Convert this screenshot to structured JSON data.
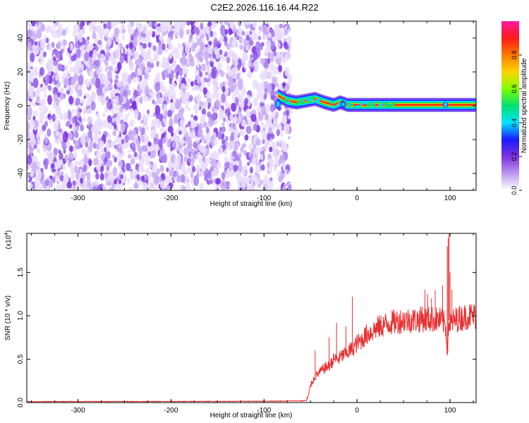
{
  "title": "C2E2.2026.116.16.44.R22",
  "colors": {
    "frame": "#000000",
    "snr_line": "#e83030",
    "spectro_dots": [
      "#e9ddfb",
      "#c9adf4",
      "#a77ded",
      "#8c52e8",
      "#7a2fe0"
    ],
    "cbar_stops": [
      "#ffffff",
      "#bb99ee",
      "#7f2fe0",
      "#1a1aff",
      "#00e5ff",
      "#00e070",
      "#7fff00",
      "#ffd400",
      "#ff7a00",
      "#ff1a1a",
      "#ff1aa0"
    ]
  },
  "chart_data": [
    {
      "type": "heatmap",
      "xlabel": "Height of straight line (km)",
      "ylabel": "Frequency (Hz)",
      "xlim": [
        -355,
        128
      ],
      "ylim": [
        -50,
        50
      ],
      "xticks": [
        -300,
        -200,
        -100,
        0,
        100
      ],
      "xtick_labels": [
        "-300",
        "-200",
        "-100",
        "0",
        "100"
      ],
      "yticks": [
        -40,
        -20,
        0,
        20,
        40
      ],
      "ytick_labels": [
        "-40",
        "-20",
        "0",
        "20",
        "40"
      ],
      "noise_region_x": [
        -355,
        -75
      ],
      "ridge": {
        "x": [
          -85,
          -75,
          -65,
          -55,
          -45,
          -35,
          -25,
          -18,
          -10,
          0,
          10,
          30,
          60,
          90,
          98,
          110,
          128
        ],
        "freq": [
          6,
          3,
          2,
          3,
          4,
          2,
          0.5,
          2,
          0.5,
          0.5,
          0.5,
          0.5,
          0.5,
          0.5,
          0.5,
          0.5,
          0.5
        ]
      },
      "colorbar": {
        "label": "Normalized spectral amplitude",
        "range": [
          0,
          1
        ],
        "ticks": [
          0.0,
          0.2,
          0.4,
          0.6,
          0.8
        ],
        "tick_labels": [
          "0.0",
          "0.2",
          "0.4",
          "0.6",
          "0.8"
        ]
      }
    },
    {
      "type": "line",
      "xlabel": "Height of straight line (km)",
      "ylabel": "SNR (10 * v/v)",
      "scale_label": "(x10",
      "scale_exponent": "4",
      "scale_close": ")",
      "xlim": [
        -355,
        128
      ],
      "ylim": [
        0,
        1.95
      ],
      "xticks": [
        -300,
        -200,
        -100,
        0,
        100
      ],
      "xtick_labels": [
        "-300",
        "-200",
        "-100",
        "0",
        "100"
      ],
      "yticks": [
        0.0,
        0.5,
        1.0,
        1.5
      ],
      "ytick_labels": [
        "0.0",
        "0.5",
        "1.0",
        "1.5"
      ],
      "series": [
        {
          "x": [
            -355,
            -300,
            -200,
            -100,
            -55,
            -52,
            -50,
            -45,
            -40,
            -35,
            -30,
            -25,
            -20,
            -15,
            -10,
            -5,
            0,
            5,
            10,
            20,
            30,
            40,
            50,
            60,
            70,
            80,
            90,
            95,
            97,
            99,
            100,
            102,
            105,
            110,
            120,
            128
          ],
          "y": [
            0.01,
            0.012,
            0.012,
            0.015,
            0.02,
            0.08,
            0.2,
            0.3,
            0.35,
            0.4,
            0.42,
            0.5,
            0.5,
            0.55,
            0.58,
            0.62,
            0.68,
            0.72,
            0.78,
            0.85,
            0.9,
            0.93,
            0.95,
            0.95,
            0.96,
            0.96,
            0.95,
            0.9,
            0.6,
            0.95,
            0.9,
            0.92,
            0.95,
            0.97,
            1.0,
            1.0
          ]
        }
      ],
      "spikes": {
        "x": [
          -45,
          -30,
          -22,
          -12,
          -5,
          70,
          73,
          76,
          80,
          84,
          92,
          97,
          98,
          99,
          100,
          102
        ],
        "y": [
          0.6,
          0.75,
          0.92,
          0.88,
          1.22,
          1.1,
          1.3,
          1.25,
          1.2,
          1.3,
          1.35,
          1.8,
          1.9,
          1.95,
          1.5,
          1.3
        ]
      }
    }
  ]
}
